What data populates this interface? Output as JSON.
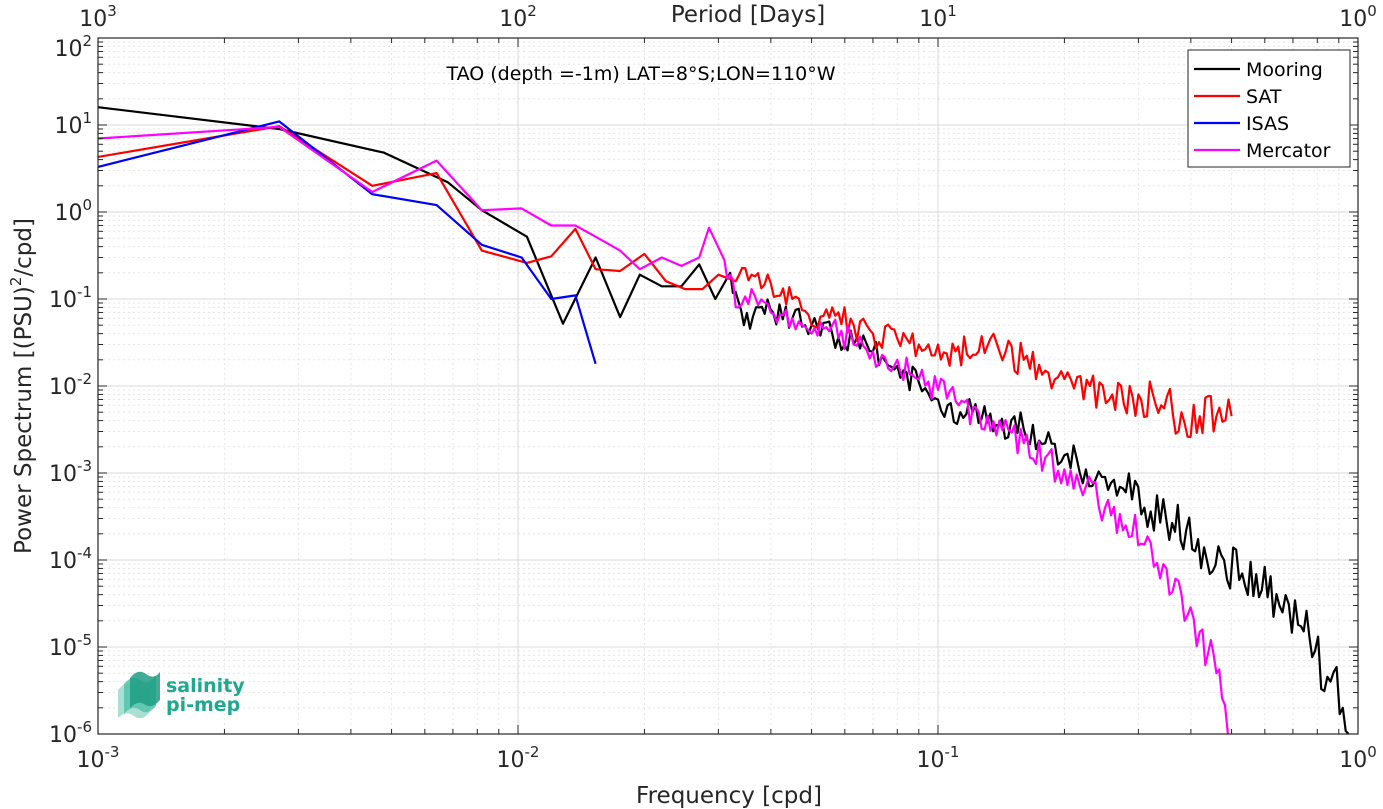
{
  "chart_data": {
    "type": "line",
    "title": "TAO (depth =-1m) LAT=8°S;LON=110°W",
    "xlabel": "Frequency [cpd]",
    "ylabel": "Power Spectrum [(PSU)",
    "ylabel_sup": "2",
    "ylabel_tail": "/cpd]",
    "top_xlabel": "Period [Days]",
    "x_scale": "log",
    "y_scale": "log",
    "xlim": [
      0.001,
      1
    ],
    "ylim": [
      1e-06,
      100
    ],
    "grid": true,
    "legend_position": "top-right",
    "x_ticks": [
      {
        "base": "10",
        "exp": "-3"
      },
      {
        "base": "10",
        "exp": "-2"
      },
      {
        "base": "10",
        "exp": "-1"
      },
      {
        "base": "10",
        "exp": "0"
      }
    ],
    "y_ticks": [
      {
        "base": "10",
        "exp": "-6"
      },
      {
        "base": "10",
        "exp": "-5"
      },
      {
        "base": "10",
        "exp": "-4"
      },
      {
        "base": "10",
        "exp": "-3"
      },
      {
        "base": "10",
        "exp": "-2"
      },
      {
        "base": "10",
        "exp": "-1"
      },
      {
        "base": "10",
        "exp": "0"
      },
      {
        "base": "10",
        "exp": "1"
      },
      {
        "base": "10",
        "exp": "2"
      }
    ],
    "top_ticks": [
      {
        "base": "10",
        "exp": "3"
      },
      {
        "base": "10",
        "exp": "2"
      },
      {
        "base": "10",
        "exp": "1"
      },
      {
        "base": "10",
        "exp": "0"
      }
    ],
    "series": [
      {
        "name": "Mooring",
        "color": "#000000",
        "x": [
          0.001,
          0.0027,
          0.0048,
          0.0068,
          0.0082,
          0.0105,
          0.0128,
          0.0153,
          0.0175,
          0.0195,
          0.022,
          0.0245,
          0.027,
          0.0295,
          0.032,
          0.0345,
          0.0375,
          0.0405,
          0.045,
          0.05,
          0.056,
          0.063,
          0.07,
          0.08,
          0.09,
          0.1,
          0.113,
          0.127,
          0.142,
          0.16,
          0.18,
          0.2,
          0.225,
          0.25,
          0.28,
          0.31,
          0.35,
          0.39,
          0.43,
          0.48,
          0.53,
          0.59,
          0.65,
          0.72,
          0.79,
          0.86,
          0.92,
          0.95
        ],
        "y": [
          16,
          9,
          4.8,
          2.2,
          1.05,
          0.52,
          0.052,
          0.3,
          0.062,
          0.19,
          0.14,
          0.14,
          0.25,
          0.1,
          0.2,
          0.05,
          0.08,
          0.07,
          0.06,
          0.05,
          0.04,
          0.03,
          0.025,
          0.017,
          0.011,
          0.007,
          0.005,
          0.0042,
          0.0042,
          0.0032,
          0.0022,
          0.0016,
          0.0011,
          0.0009,
          0.0006,
          0.0004,
          0.00028,
          0.00022,
          0.00014,
          0.0001,
          7e-05,
          4.5e-05,
          3e-05,
          1.8e-05,
          9e-06,
          4e-06,
          2e-06,
          1e-06
        ]
      },
      {
        "name": "SAT",
        "color": "#ff0000",
        "x": [
          0.001,
          0.0027,
          0.0045,
          0.0064,
          0.0082,
          0.0105,
          0.012,
          0.0137,
          0.0153,
          0.0175,
          0.02,
          0.0225,
          0.025,
          0.0275,
          0.03,
          0.033,
          0.036,
          0.04,
          0.045,
          0.05,
          0.056,
          0.063,
          0.07,
          0.08,
          0.09,
          0.1,
          0.11,
          0.125,
          0.14,
          0.16,
          0.18,
          0.2,
          0.23,
          0.26,
          0.3,
          0.34,
          0.38,
          0.42,
          0.46,
          0.5
        ],
        "y": [
          4.3,
          9.7,
          2.0,
          2.8,
          0.36,
          0.26,
          0.31,
          0.64,
          0.22,
          0.21,
          0.33,
          0.16,
          0.13,
          0.13,
          0.19,
          0.16,
          0.19,
          0.15,
          0.1,
          0.05,
          0.08,
          0.05,
          0.04,
          0.035,
          0.03,
          0.03,
          0.025,
          0.025,
          0.025,
          0.02,
          0.015,
          0.012,
          0.01,
          0.008,
          0.008,
          0.006,
          0.005,
          0.0045,
          0.0045,
          0.0045
        ]
      },
      {
        "name": "ISAS",
        "color": "#0000ff",
        "x": [
          0.001,
          0.0027,
          0.0045,
          0.0064,
          0.0082,
          0.0102,
          0.012,
          0.0137,
          0.0153
        ],
        "y": [
          3.3,
          11,
          1.6,
          1.2,
          0.42,
          0.3,
          0.1,
          0.11,
          0.018
        ]
      },
      {
        "name": "Mercator",
        "color": "#ff00ff",
        "x": [
          0.001,
          0.0027,
          0.0045,
          0.0064,
          0.0082,
          0.0102,
          0.012,
          0.0137,
          0.0153,
          0.0175,
          0.0195,
          0.022,
          0.0245,
          0.027,
          0.0285,
          0.031,
          0.0335,
          0.036,
          0.04,
          0.045,
          0.05,
          0.056,
          0.063,
          0.07,
          0.08,
          0.09,
          0.1,
          0.112,
          0.125,
          0.14,
          0.16,
          0.18,
          0.2,
          0.225,
          0.25,
          0.28,
          0.31,
          0.35,
          0.38,
          0.42,
          0.46,
          0.49
        ],
        "y": [
          7,
          9.5,
          1.7,
          3.9,
          1.05,
          1.1,
          0.7,
          0.7,
          0.52,
          0.36,
          0.22,
          0.3,
          0.24,
          0.3,
          0.66,
          0.28,
          0.08,
          0.13,
          0.07,
          0.06,
          0.04,
          0.05,
          0.03,
          0.025,
          0.02,
          0.012,
          0.009,
          0.006,
          0.005,
          0.004,
          0.0022,
          0.0015,
          0.0011,
          0.0007,
          0.0004,
          0.00025,
          0.00015,
          8e-05,
          4e-05,
          1.5e-05,
          5e-06,
          1e-06
        ]
      }
    ]
  },
  "logo": {
    "line1": "salinity",
    "line2": "pi-mep"
  }
}
